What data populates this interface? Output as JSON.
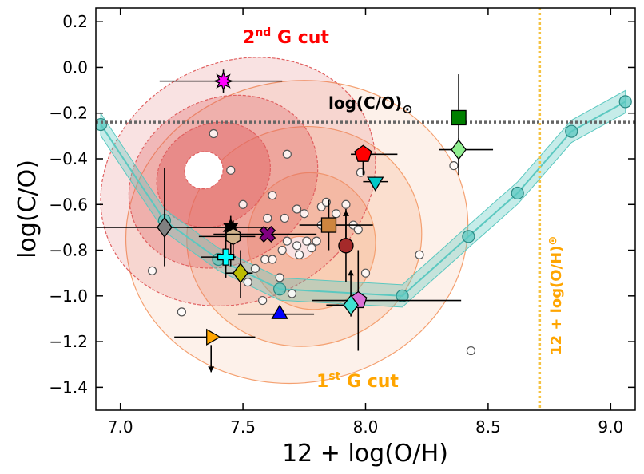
{
  "chart_data": {
    "type": "scatter",
    "xlabel": "12 + log(O/H)",
    "ylabel": "log(C/O)",
    "xlim": [
      6.9,
      9.1
    ],
    "ylim": [
      -1.5,
      0.26
    ],
    "xticks": [
      7.0,
      7.5,
      8.0,
      8.5,
      9.0
    ],
    "xtick_labels": [
      "7.0",
      "7.5",
      "8.0",
      "8.5",
      "9.0"
    ],
    "yticks": [
      0.2,
      0.0,
      -0.2,
      -0.4,
      -0.6,
      -0.8,
      -1.0,
      -1.2,
      -1.4
    ],
    "ytick_labels": [
      "0.2",
      "0.0",
      "−0.2",
      "−0.4",
      "−0.6",
      "−0.8",
      "−1.0",
      "−1.2",
      "−1.4"
    ],
    "grid": false,
    "annotations": {
      "solar_co_label": "log(C/O)",
      "solar_symbol": "⊙",
      "solar_oh_label": "12 + log(O/H)",
      "cut2_main": "2",
      "cut2_sup": "nd",
      "cut2_rest": " G cut",
      "cut1_main": "1",
      "cut1_sup": "st",
      "cut1_rest": " G cut"
    },
    "reference_lines": {
      "solar_co": -0.24,
      "solar_oh": 8.71
    },
    "colors": {
      "cut2": "#ff0000",
      "cut1": "#ffa500",
      "track": "#5bc8c0",
      "solar_co_line": "#666666",
      "solar_oh_line": "#f5c242"
    },
    "track": {
      "x": [
        6.92,
        7.18,
        7.4,
        7.65,
        8.15,
        8.42,
        8.62,
        8.84,
        9.06
      ],
      "y": [
        -0.25,
        -0.67,
        -0.84,
        -0.97,
        -1.0,
        -0.74,
        -0.55,
        -0.28,
        -0.15
      ]
    },
    "background_points": {
      "x": [
        7.13,
        7.25,
        7.38,
        7.45,
        7.5,
        7.52,
        7.55,
        7.58,
        7.6,
        7.62,
        7.65,
        7.66,
        7.68,
        7.7,
        7.72,
        7.73,
        7.75,
        7.76,
        7.78,
        7.8,
        7.82,
        7.84,
        7.88,
        7.92,
        7.95,
        7.97,
        8.0,
        8.22,
        8.36,
        8.43,
        7.59,
        7.62,
        7.67,
        7.72,
        7.82,
        7.68,
        7.98
      ],
      "y": [
        -0.89,
        -1.07,
        -0.29,
        -0.45,
        -0.6,
        -0.94,
        -0.88,
        -1.02,
        -0.66,
        -0.84,
        -0.92,
        -0.8,
        -0.76,
        -0.99,
        -0.78,
        -0.82,
        -0.64,
        -0.76,
        -0.79,
        -0.76,
        -0.61,
        -0.59,
        -0.64,
        -0.6,
        -0.69,
        -0.71,
        -0.9,
        -0.82,
        -0.43,
        -1.24,
        -0.84,
        -0.56,
        -0.66,
        -0.62,
        -0.69,
        -0.38,
        -0.46
      ]
    },
    "series": [
      {
        "marker": "star8",
        "color": "#ff00ff",
        "x": 7.42,
        "y": -0.06,
        "xerr": [
          0.26,
          0.24
        ],
        "yerr": [
          0.05,
          0.05
        ]
      },
      {
        "marker": "square",
        "color": "#008000",
        "x": 8.38,
        "y": -0.22,
        "xerr": [
          0.0,
          0.0
        ],
        "yerr": [
          0.2,
          0.19
        ]
      },
      {
        "marker": "diamond",
        "color": "#90ee90",
        "x": 8.38,
        "y": -0.36,
        "xerr": [
          0.08,
          0.14
        ],
        "yerr": [
          0.11,
          0.05
        ]
      },
      {
        "marker": "pentagon",
        "color": "#ff0000",
        "x": 7.99,
        "y": -0.38,
        "xerr": [
          0.05,
          0.14
        ],
        "yerr": [
          0.09,
          0.0
        ]
      },
      {
        "marker": "tri_down",
        "color": "#00c8c8",
        "x": 8.04,
        "y": -0.5,
        "xerr": [
          0.05,
          0.05
        ],
        "yerr": [
          0.0,
          0.0
        ]
      },
      {
        "marker": "diamond",
        "color": "#808080",
        "x": 7.18,
        "y": -0.7,
        "xerr": [
          0.28,
          0.3
        ],
        "yerr": [
          0.17,
          0.26
        ]
      },
      {
        "marker": "star6",
        "color": "#000000",
        "x": 7.45,
        "y": -0.7,
        "xerr": [
          0.18,
          0.15
        ],
        "yerr": [
          0.17,
          0.05
        ]
      },
      {
        "marker": "hexagon",
        "color": "#d2b48c",
        "x": 7.46,
        "y": -0.74,
        "xerr": [
          0.14,
          0.09
        ],
        "yerr": [
          0.1,
          0.07
        ]
      },
      {
        "marker": "cross",
        "color": "#800080",
        "x": 7.6,
        "y": -0.73,
        "xerr": [
          0.22,
          0.2
        ],
        "yerr": [
          0.0,
          0.0
        ]
      },
      {
        "marker": "square",
        "color": "#cd853f",
        "x": 7.85,
        "y": -0.69,
        "xerr": [
          0.12,
          0.18
        ],
        "yerr": [
          0.11,
          0.11
        ]
      },
      {
        "marker": "circle",
        "color": "#a52a2a",
        "x": 7.92,
        "y": -0.78,
        "xerr": [
          0.0,
          0.0
        ],
        "yerr": [
          0.16,
          0.16
        ],
        "up_arrow": true
      },
      {
        "marker": "plus",
        "color": "#00ffff",
        "x": 7.43,
        "y": -0.83,
        "xerr": [
          0.1,
          0.04
        ],
        "yerr": [
          0.09,
          0.12
        ]
      },
      {
        "marker": "diamond",
        "color": "#bdbd00",
        "x": 7.49,
        "y": -0.9,
        "xerr": [
          0.06,
          0.05
        ],
        "yerr": [
          0.11,
          0.1
        ]
      },
      {
        "marker": "tri_up",
        "color": "#0000ff",
        "x": 7.65,
        "y": -1.08,
        "xerr": [
          0.17,
          0.14
        ],
        "yerr": [
          0.0,
          0.0
        ]
      },
      {
        "marker": "pentagon",
        "color": "#da70d6",
        "x": 7.97,
        "y": -1.02,
        "xerr": [
          0.19,
          0.42
        ],
        "yerr": [
          0.22,
          0.22
        ]
      },
      {
        "marker": "diamond",
        "color": "#40e0d0",
        "x": 7.94,
        "y": -1.04,
        "xerr": [
          0.1,
          0.0
        ],
        "yerr": [
          0.05,
          0.0
        ],
        "up_arrow": true
      },
      {
        "marker": "tri_right",
        "color": "#ffa500",
        "x": 7.37,
        "y": -1.18,
        "xerr": [
          0.15,
          0.18
        ],
        "yerr": [
          0.0,
          0.0
        ],
        "down_arrow": true
      }
    ],
    "contours": {
      "cut2": [
        {
          "center": [
            7.48,
            -0.5
          ],
          "rx": 0.58,
          "ry": 0.52,
          "rot": 28,
          "fill": 0.18
        },
        {
          "center": [
            7.42,
            -0.5
          ],
          "rx": 0.4,
          "ry": 0.36,
          "rot": 30,
          "fill": 0.32
        },
        {
          "center": [
            7.38,
            -0.47
          ],
          "rx": 0.24,
          "ry": 0.22,
          "rot": 30,
          "fill": 0.45
        },
        {
          "center": [
            7.34,
            -0.45
          ],
          "rx": 0.08,
          "ry": 0.08,
          "rot": 30,
          "fill": 1.0,
          "white": true
        }
      ],
      "cut1": [
        {
          "center": [
            7.72,
            -0.72
          ],
          "rx": 0.7,
          "ry": 0.66,
          "rot": 10,
          "fill": 0.15
        },
        {
          "center": [
            7.75,
            -0.74
          ],
          "rx": 0.48,
          "ry": 0.48,
          "rot": 10,
          "fill": 0.22
        },
        {
          "center": [
            7.78,
            -0.76
          ],
          "rx": 0.26,
          "ry": 0.3,
          "rot": 10,
          "fill": 0.28
        },
        {
          "center": [
            7.73,
            -0.79
          ],
          "rx": 0.06,
          "ry": 0.05,
          "rot": 0,
          "fill": 1.0,
          "white": true
        }
      ]
    }
  }
}
